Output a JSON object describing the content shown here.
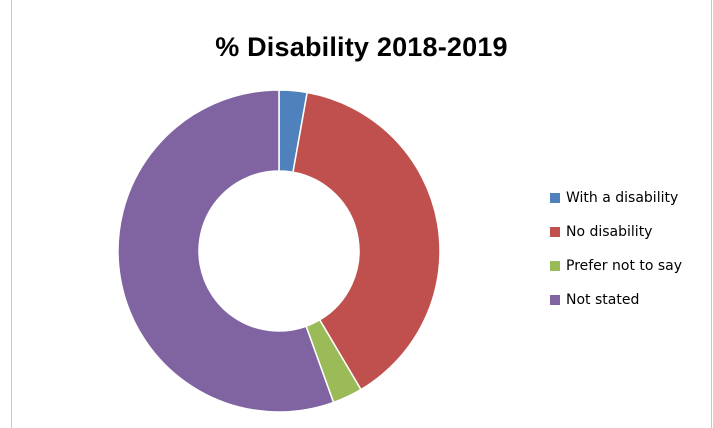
{
  "chart_data": {
    "type": "pie",
    "variant": "donut",
    "title": "% Disability 2018-2019",
    "categories": [
      "With a disability",
      "No disability",
      "Prefer not to say",
      "Not stated"
    ],
    "values": [
      2.8,
      38.7,
      3.0,
      55.5
    ],
    "colors": [
      "#4f81bd",
      "#c0504d",
      "#9bbb59",
      "#8064a2"
    ],
    "legend_position": "right"
  }
}
